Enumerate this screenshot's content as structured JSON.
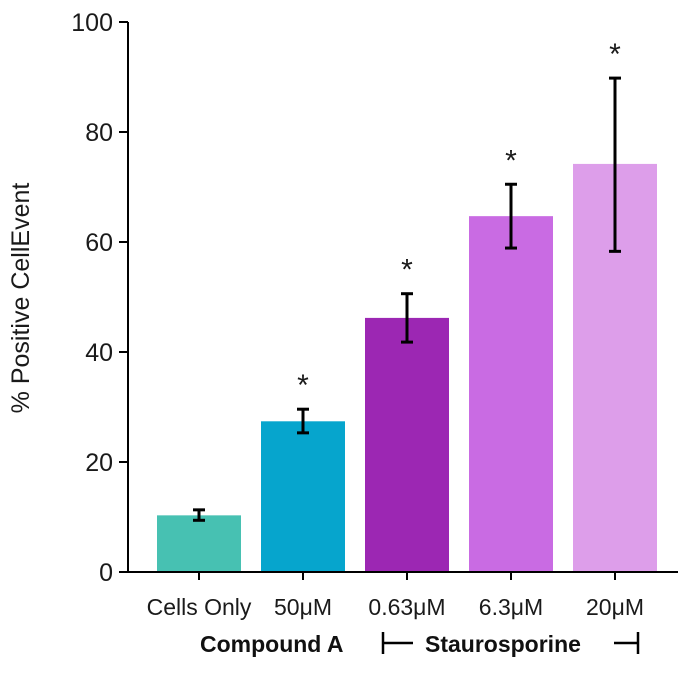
{
  "chart_data": {
    "type": "bar",
    "categories": [
      "Cells Only",
      "50μM",
      "0.63μM",
      "6.3μM",
      "20μM"
    ],
    "values": [
      10.3,
      27.4,
      46.2,
      64.7,
      74.2
    ],
    "error_low": [
      9.4,
      25.3,
      41.8,
      58.9,
      58.3
    ],
    "error_high": [
      11.3,
      29.6,
      50.6,
      70.5,
      89.8
    ],
    "colors": [
      "#47c1b2",
      "#06a5cd",
      "#9c27b3",
      "#c96be3",
      "#dd9eea"
    ],
    "significance": [
      "",
      "*",
      "*",
      "*",
      "*"
    ],
    "ylabel": "% Positive CellEvent",
    "xlabel": "",
    "ylim": [
      0,
      100
    ],
    "yticks": [
      0,
      20,
      40,
      60,
      80,
      100
    ],
    "grid": false,
    "groups": [
      {
        "label": "Compound A",
        "bracket": false
      },
      {
        "label": "Staurosporine",
        "bracket": true
      }
    ]
  }
}
